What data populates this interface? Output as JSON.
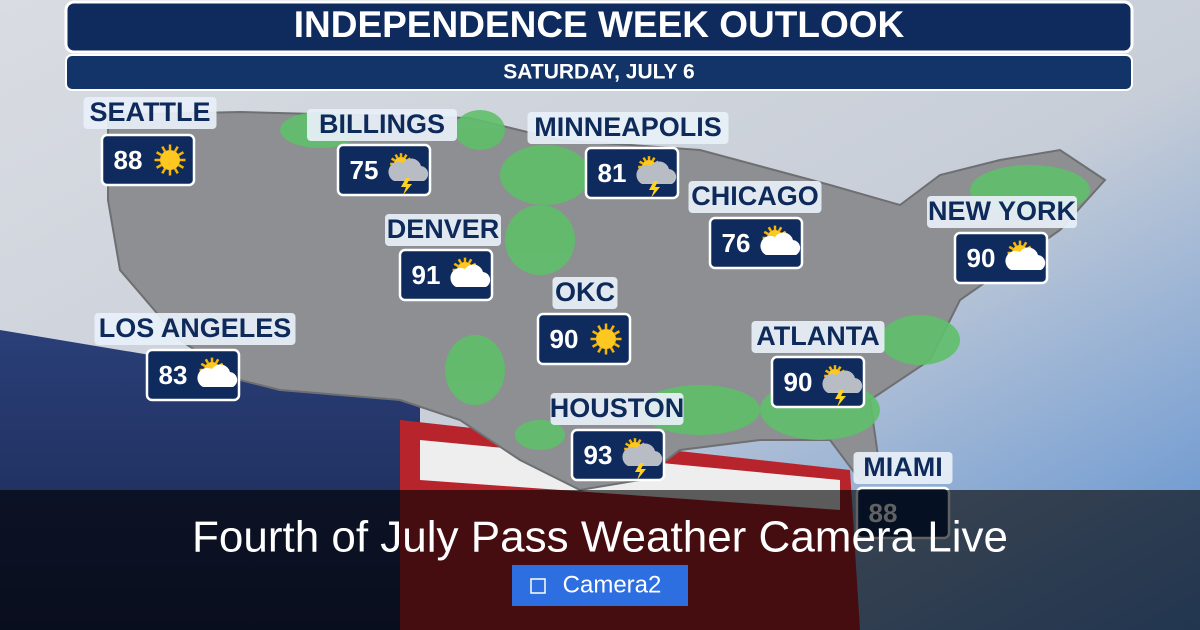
{
  "header": {
    "title": "INDEPENDENCE WEEK OUTLOOK",
    "subtitle": "SATURDAY, JULY 6"
  },
  "cities": [
    {
      "name": "SEATTLE",
      "temp": 88,
      "icon": "sun"
    },
    {
      "name": "BILLINGS",
      "temp": 75,
      "icon": "storm"
    },
    {
      "name": "MINNEAPOLIS",
      "temp": 81,
      "icon": "storm"
    },
    {
      "name": "CHICAGO",
      "temp": 76,
      "icon": "partly"
    },
    {
      "name": "NEW YORK",
      "temp": 90,
      "icon": "partly"
    },
    {
      "name": "DENVER",
      "temp": 91,
      "icon": "partly"
    },
    {
      "name": "OKC",
      "temp": 90,
      "icon": "sun"
    },
    {
      "name": "LOS ANGELES",
      "temp": 83,
      "icon": "partly"
    },
    {
      "name": "ATLANTA",
      "temp": 90,
      "icon": "storm"
    },
    {
      "name": "HOUSTON",
      "temp": 93,
      "icon": "storm"
    },
    {
      "name": "MIAMI",
      "temp": 88
    }
  ],
  "overlay": {
    "title": "Fourth of July Pass Weather Camera Live",
    "button": "Camera2"
  }
}
